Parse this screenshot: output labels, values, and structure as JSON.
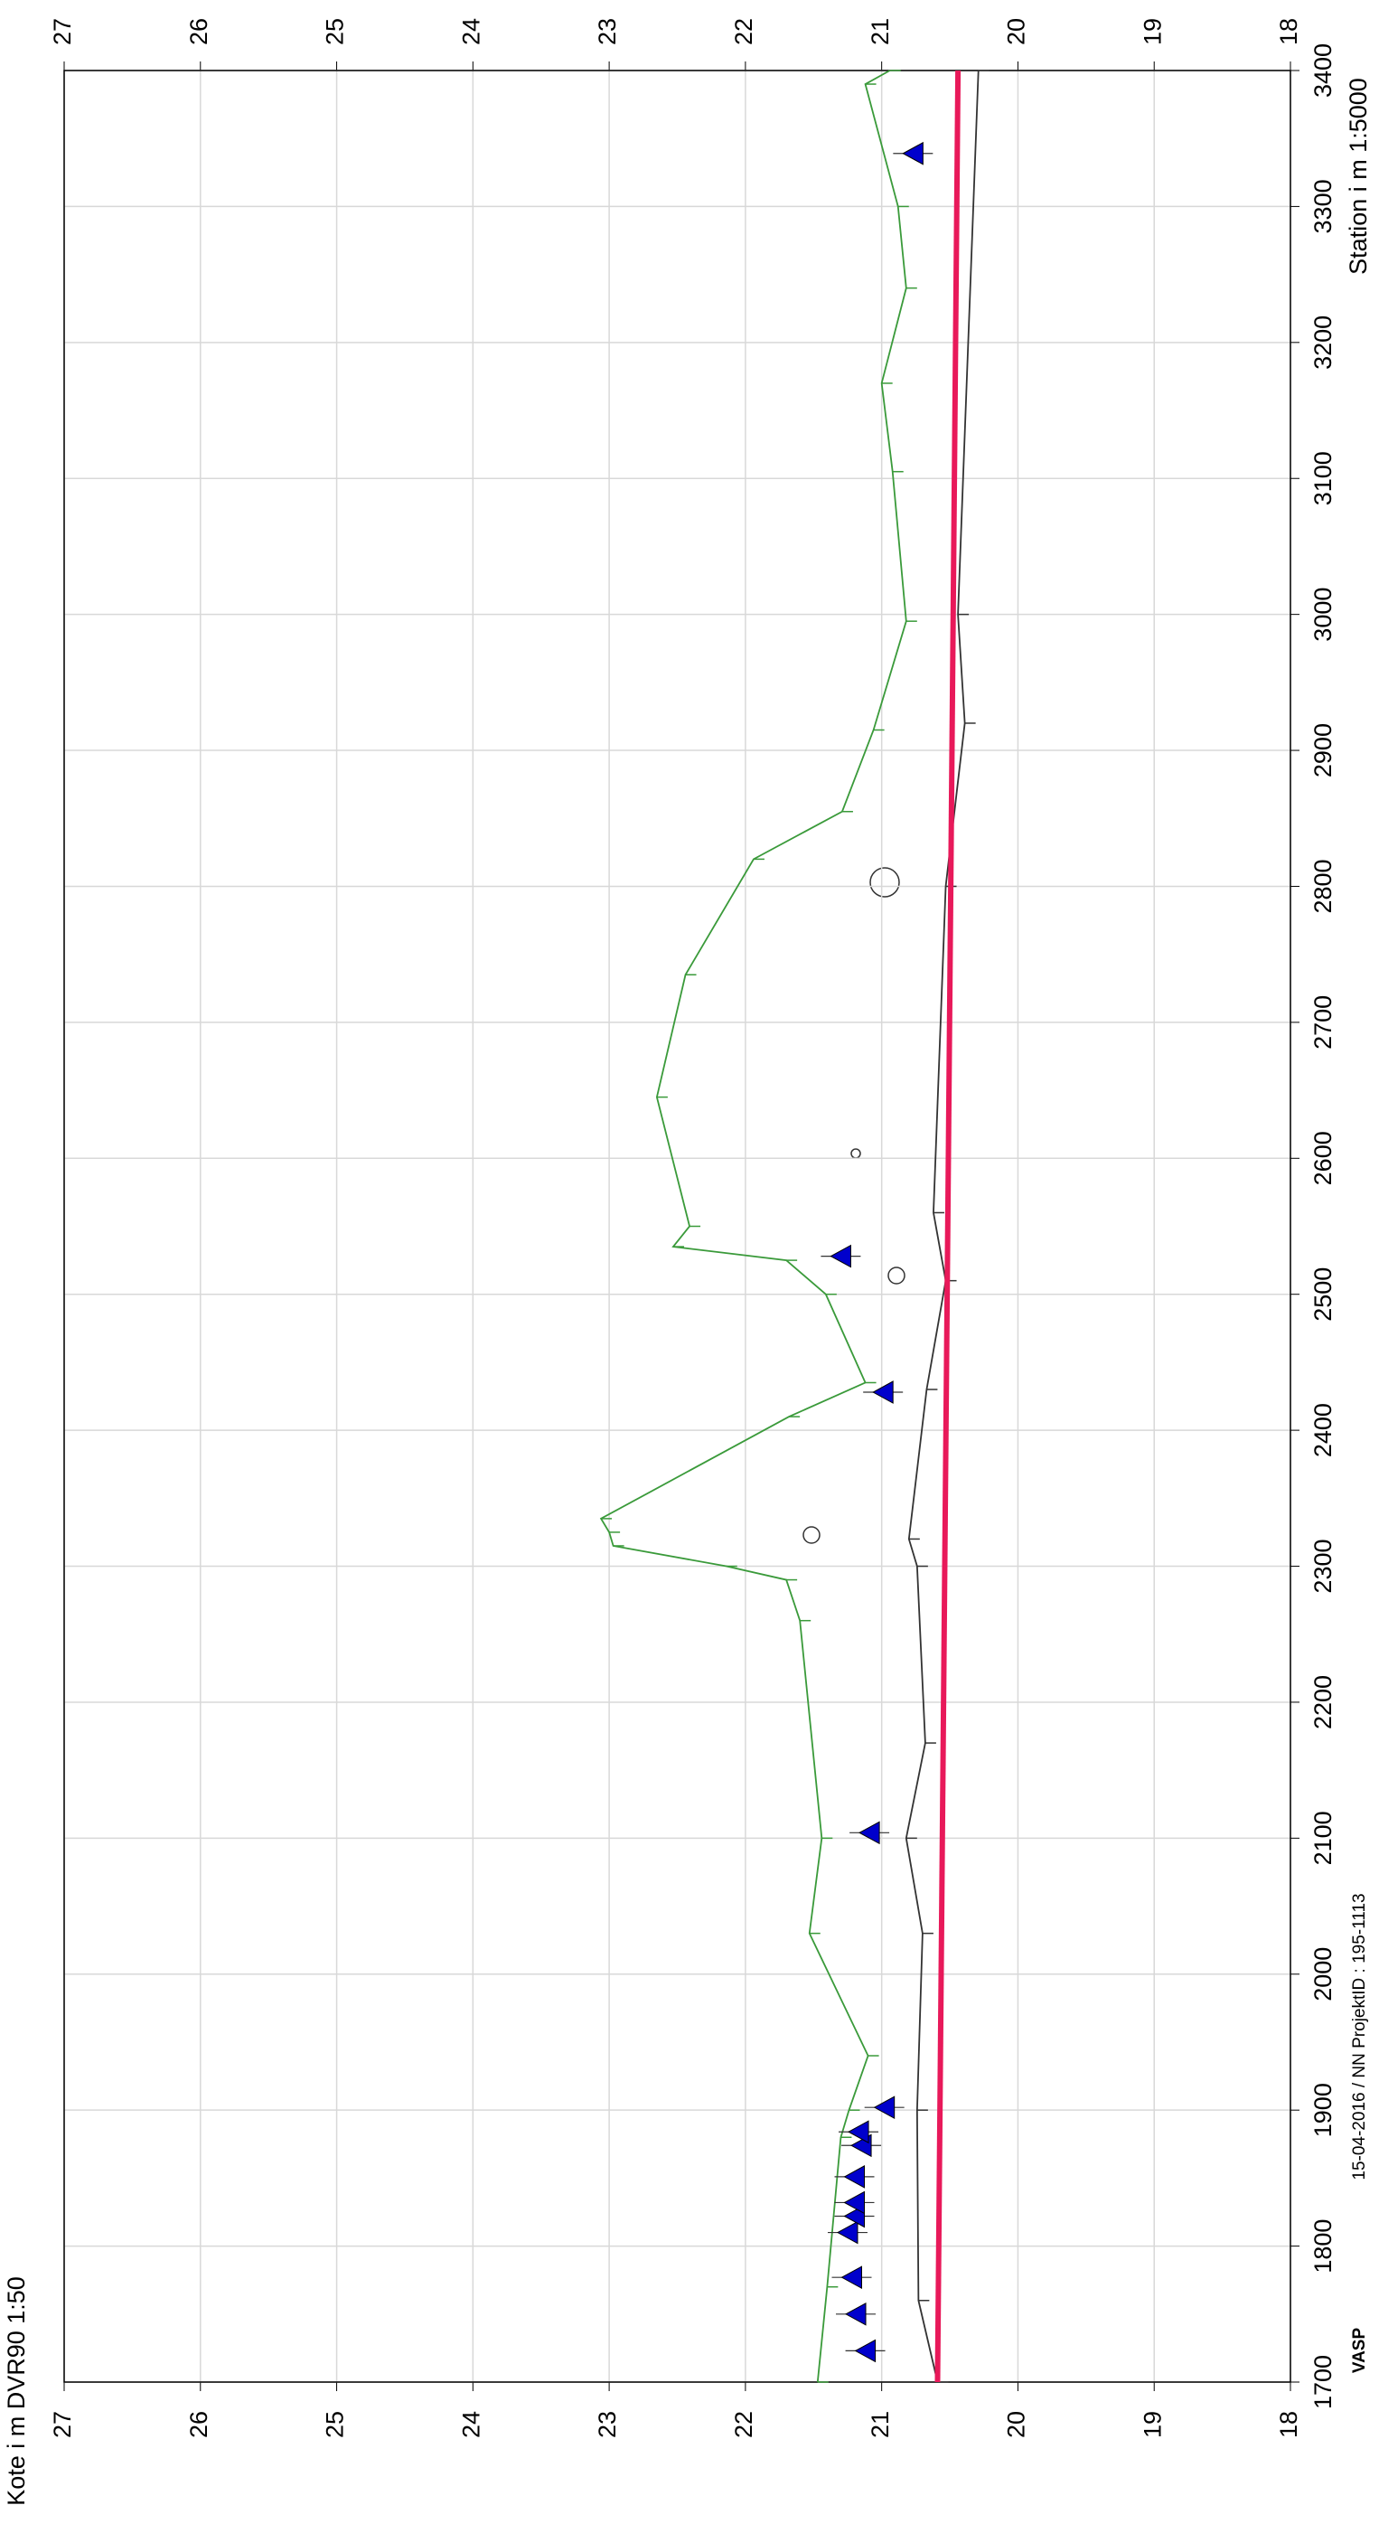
{
  "chart_data": {
    "type": "line",
    "y_label": "Kote i m DVR90 1:50",
    "x_label": "Station i m 1:5000",
    "footer": "15-04-2016 / NN   ProjektID : 195-1113",
    "signature": "VASP",
    "xlim": [
      1700,
      3400
    ],
    "xticks": [
      1700,
      1800,
      1900,
      2000,
      2100,
      2200,
      2300,
      2400,
      2500,
      2600,
      2700,
      2800,
      2900,
      3000,
      3100,
      3200,
      3300,
      3400
    ],
    "ylim": [
      18,
      27
    ],
    "yticks": [
      18,
      19,
      20,
      21,
      22,
      23,
      24,
      25,
      26,
      27
    ],
    "grid": true,
    "series": [
      {
        "color": "#3a9a3a",
        "style": "line",
        "x": [
          1700,
          1770,
          1880,
          1900,
          1940,
          2030,
          2100,
          2260,
          2290,
          2300,
          2315,
          2325,
          2335,
          2410,
          2435,
          2500,
          2525,
          2535,
          2550,
          2645,
          2735,
          2820,
          2855,
          2915,
          2995,
          3105,
          3170,
          3240,
          3300,
          3390,
          3400
        ],
        "values": [
          21.47,
          21.4,
          21.3,
          21.24,
          21.1,
          21.53,
          21.44,
          21.6,
          21.7,
          22.14,
          22.97,
          23.0,
          23.06,
          21.68,
          21.12,
          21.41,
          21.7,
          22.53,
          22.41,
          22.65,
          22.44,
          21.94,
          21.29,
          21.06,
          20.82,
          20.92,
          21.0,
          20.82,
          20.88,
          21.12,
          20.94
        ]
      },
      {
        "color": "#333333",
        "style": "line",
        "x": [
          1700,
          1760,
          1900,
          2030,
          2100,
          2170,
          2300,
          2320,
          2430,
          2510,
          2560,
          2800,
          2920,
          3000,
          3400
        ],
        "values": [
          20.59,
          20.73,
          20.74,
          20.7,
          20.82,
          20.68,
          20.74,
          20.8,
          20.67,
          20.53,
          20.62,
          20.53,
          20.39,
          20.44,
          20.29
        ]
      },
      {
        "color": "#e8195a",
        "style": "thick",
        "x": [
          1700,
          3400
        ],
        "values": [
          20.59,
          20.44
        ]
      },
      {
        "color": "#0000cc",
        "style": "triangle",
        "x": [
          1723,
          1750,
          1777,
          1810,
          1822,
          1832,
          1851,
          1874,
          1884,
          1902,
          2104,
          2428,
          2528,
          3339
        ],
        "values": [
          21.12,
          21.19,
          21.22,
          21.25,
          21.2,
          21.2,
          21.2,
          21.15,
          21.17,
          20.98,
          21.09,
          20.99,
          21.3,
          20.77
        ]
      }
    ]
  }
}
